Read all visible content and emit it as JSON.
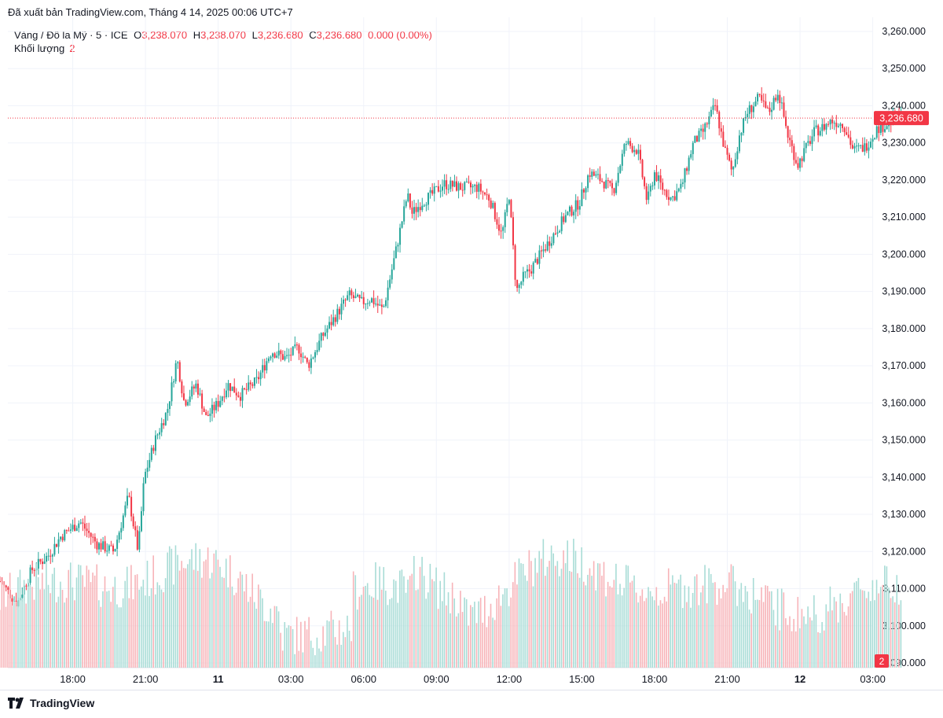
{
  "header": {
    "published": "Đã xuất bản TradingView.com, Tháng 4 14, 2025 00:06 UTC+7"
  },
  "legend": {
    "symbol": "Vàng / Đô la Mỹ · 5 · ICE",
    "o_label": "O",
    "o_value": "3,238.070",
    "h_label": "H",
    "h_value": "3,238.070",
    "l_label": "L",
    "l_value": "3,236.680",
    "c_label": "C",
    "c_value": "3,236.680",
    "change": "0.000 (0.00%)",
    "volume_label": "Khối lượng",
    "volume_value": "2"
  },
  "price_badge": "3,236.680",
  "volume_badge": "2",
  "footer": {
    "brand": "TradingView"
  },
  "colors": {
    "up": "#26a69a",
    "down": "#f23645",
    "up_vol": "#a8dcd6",
    "down_vol": "#f7b3b8",
    "grid": "#f0f3fa",
    "text": "#131722"
  },
  "chart_data": {
    "type": "candlestick",
    "title": "Vàng / Đô la Mỹ · 5 · ICE",
    "y_ticks": [
      "3,260.000",
      "3,250.000",
      "3,240.000",
      "3,230.000",
      "3,220.000",
      "3,210.000",
      "3,200.000",
      "3,190.000",
      "3,180.000",
      "3,170.000",
      "3,160.000",
      "3,150.000",
      "3,140.000",
      "3,130.000",
      "3,120.000",
      "3,110.000",
      "3,100.000",
      "3,090.000"
    ],
    "ylim": [
      3090,
      3260
    ],
    "x_ticks": [
      {
        "label": "18:00",
        "hour": 18,
        "bold": false
      },
      {
        "label": "21:00",
        "hour": 21,
        "bold": false
      },
      {
        "label": "11",
        "hour": 24,
        "bold": true
      },
      {
        "label": "03:00",
        "hour": 27,
        "bold": false
      },
      {
        "label": "06:00",
        "hour": 30,
        "bold": false
      },
      {
        "label": "09:00",
        "hour": 33,
        "bold": false
      },
      {
        "label": "12:00",
        "hour": 36,
        "bold": false
      },
      {
        "label": "15:00",
        "hour": 39,
        "bold": false
      },
      {
        "label": "18:00",
        "hour": 42,
        "bold": false
      },
      {
        "label": "21:00",
        "hour": 45,
        "bold": false
      },
      {
        "label": "12",
        "hour": 48,
        "bold": true
      },
      {
        "label": "03:00",
        "hour": 51,
        "bold": false
      }
    ],
    "last_price": 3236.68,
    "path_hours": [
      15.0,
      15.7,
      16.3,
      17.0,
      17.5,
      18.3,
      19.0,
      19.7,
      20.3,
      20.7,
      20.95,
      21.4,
      21.9,
      22.3,
      22.6,
      23.1,
      23.5,
      24.0,
      24.4,
      24.9,
      25.6,
      26.2,
      26.8,
      27.3,
      27.7,
      28.3,
      28.9,
      29.4,
      29.9,
      30.3,
      30.8,
      31.3,
      31.8,
      32.0,
      32.4,
      32.8,
      33.3,
      34.0,
      34.7,
      35.2,
      35.7,
      36.0,
      36.3,
      36.6,
      36.9,
      37.3,
      37.8,
      38.3,
      38.9,
      39.3,
      39.8,
      40.3,
      40.8,
      41.3,
      41.7,
      42.0,
      42.3,
      42.7,
      43.1,
      43.6,
      44.0,
      44.5,
      44.9,
      45.2,
      45.5,
      45.8,
      46.3,
      46.7,
      47.1,
      47.5,
      47.9,
      48.2,
      48.6,
      48.9,
      49.3,
      49.8,
      50.2,
      50.7,
      51.2,
      51.6,
      52.0,
      52.2
    ],
    "path_prices": [
      3112,
      3106,
      3115,
      3119,
      3124,
      3128,
      3122,
      3120,
      3135,
      3120,
      3140,
      3150,
      3158,
      3172,
      3160,
      3165,
      3156,
      3160,
      3165,
      3162,
      3166,
      3174,
      3172,
      3175,
      3170,
      3178,
      3184,
      3189,
      3187,
      3188,
      3185,
      3200,
      3216,
      3211,
      3214,
      3216,
      3219,
      3218,
      3218,
      3215,
      3205,
      3216,
      3190,
      3194,
      3196,
      3200,
      3205,
      3210,
      3214,
      3222,
      3220,
      3217,
      3230,
      3228,
      3214,
      3222,
      3218,
      3215,
      3218,
      3230,
      3233,
      3240,
      3228,
      3222,
      3232,
      3238,
      3242,
      3238,
      3244,
      3232,
      3224,
      3228,
      3233,
      3234,
      3236,
      3235,
      3228,
      3229,
      3234,
      3235,
      3237,
      3236.68
    ],
    "volume_hint": "Khối lượng"
  }
}
